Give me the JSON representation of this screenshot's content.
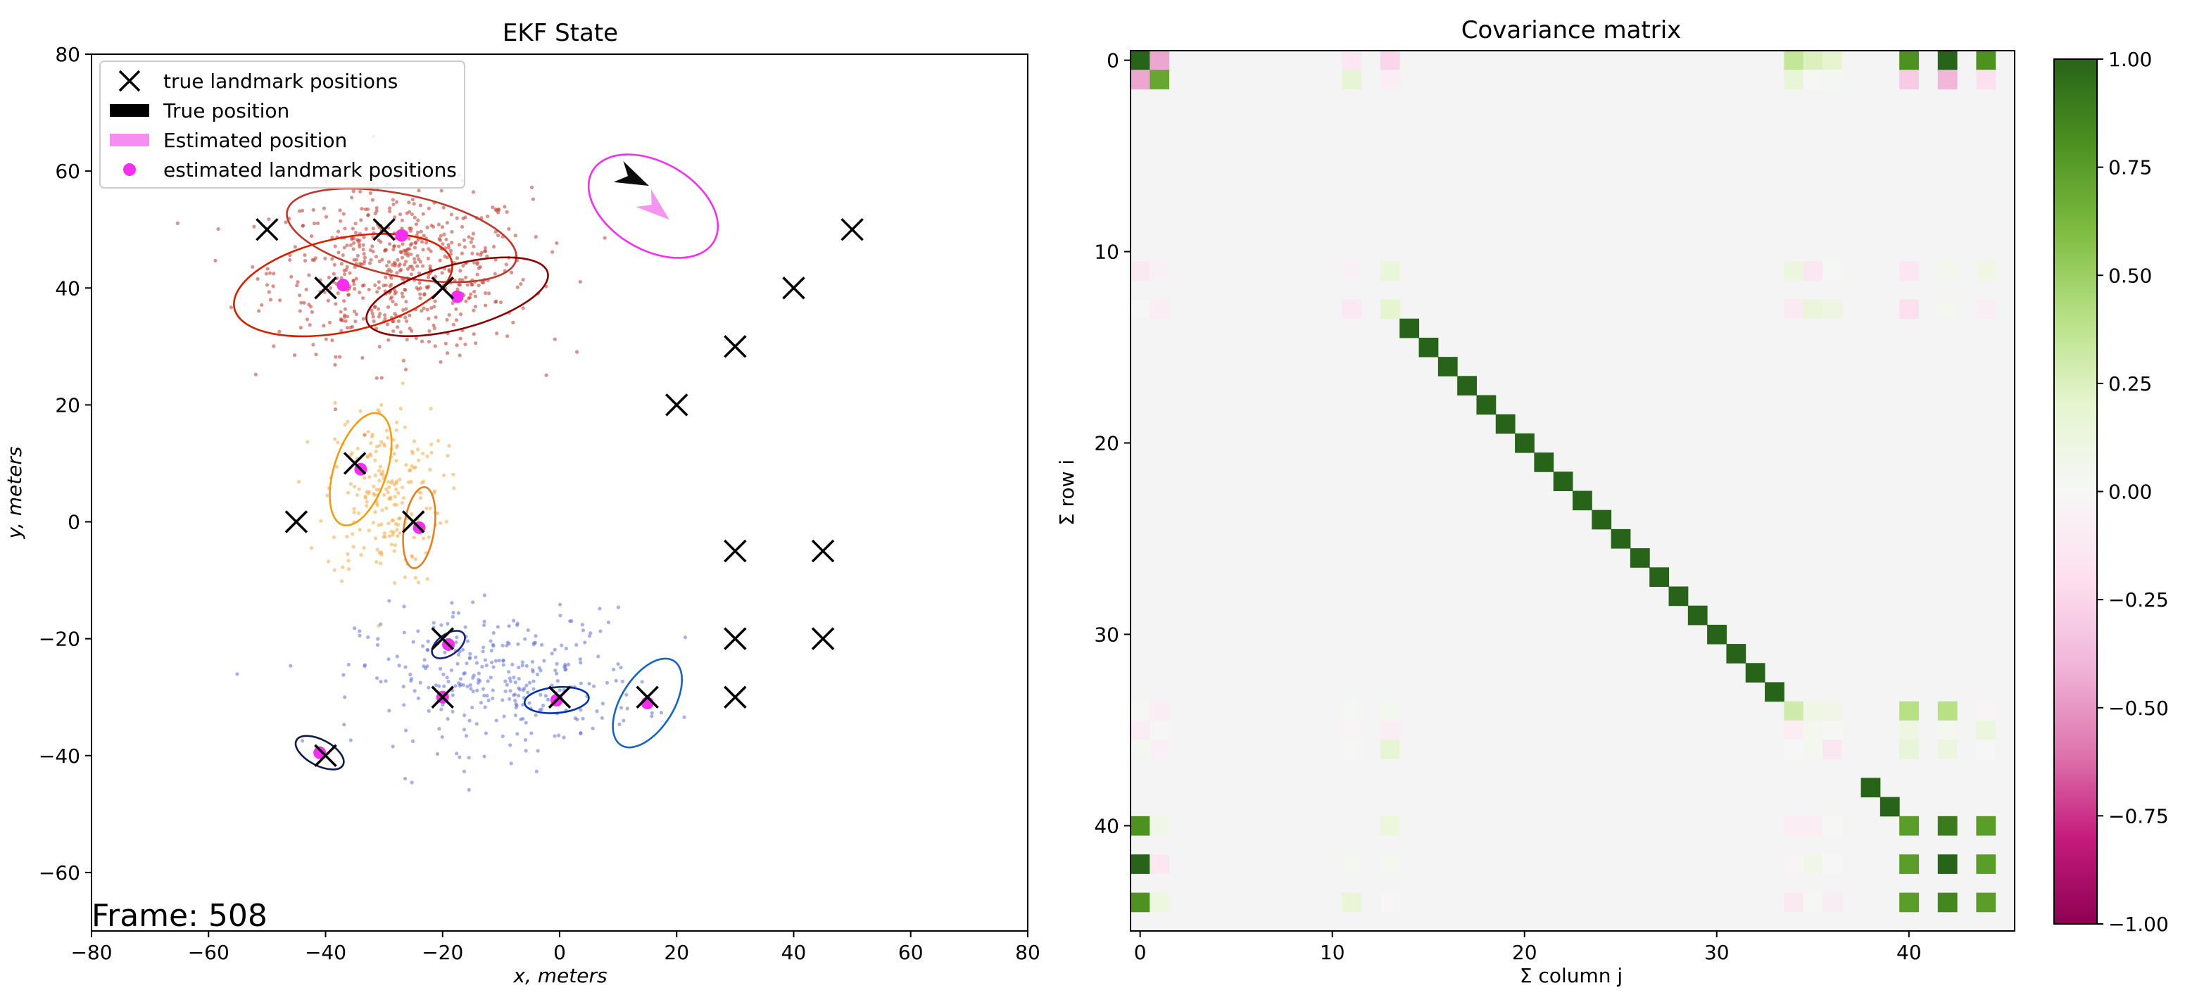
{
  "chart_data": [
    {
      "type": "scatter",
      "title": "EKF State",
      "xlabel": "x, meters",
      "ylabel": "y, meters",
      "xlim": [
        -80,
        80
      ],
      "ylim": [
        -70,
        80
      ],
      "xticks": [
        -80,
        -60,
        -40,
        -20,
        0,
        20,
        40,
        60,
        80
      ],
      "yticks": [
        -60,
        -40,
        -20,
        0,
        20,
        40,
        60,
        80
      ],
      "xtick_labels": [
        "−80",
        "−60",
        "−40",
        "−20",
        "0",
        "20",
        "40",
        "60",
        "80"
      ],
      "ytick_labels": [
        "−60",
        "−40",
        "−20",
        "0",
        "20",
        "40",
        "60",
        "80"
      ],
      "grid": false,
      "legend_position": "top-left",
      "legend": [
        {
          "label": "true landmark positions",
          "marker": "x",
          "color": "#000000"
        },
        {
          "label": "True position",
          "marker": "arrow",
          "color": "#000000"
        },
        {
          "label": "Estimated position",
          "marker": "arrow",
          "color": "#f58ef0"
        },
        {
          "label": "estimated landmark positions",
          "marker": "circle",
          "color": "#f52ef0"
        }
      ],
      "annotation": "Frame: 508",
      "true_landmarks": [
        {
          "x": -50,
          "y": 50
        },
        {
          "x": -30,
          "y": 50
        },
        {
          "x": -40,
          "y": 40
        },
        {
          "x": -20,
          "y": 40
        },
        {
          "x": 50,
          "y": 50
        },
        {
          "x": 40,
          "y": 40
        },
        {
          "x": 30,
          "y": 30
        },
        {
          "x": 20,
          "y": 20
        },
        {
          "x": -35,
          "y": 10
        },
        {
          "x": -45,
          "y": 0
        },
        {
          "x": -25,
          "y": 0
        },
        {
          "x": 30,
          "y": -5
        },
        {
          "x": 45,
          "y": -5
        },
        {
          "x": 30,
          "y": -20
        },
        {
          "x": 45,
          "y": -20
        },
        {
          "x": -20,
          "y": -20
        },
        {
          "x": -20,
          "y": -30
        },
        {
          "x": 0,
          "y": -30
        },
        {
          "x": 15,
          "y": -30
        },
        {
          "x": 30,
          "y": -30
        },
        {
          "x": -40,
          "y": -40
        }
      ],
      "estimated_landmarks": [
        {
          "x": -27,
          "y": 49
        },
        {
          "x": -37,
          "y": 40.5
        },
        {
          "x": -17.5,
          "y": 38.5
        },
        {
          "x": -34,
          "y": 9
        },
        {
          "x": -24,
          "y": -1
        },
        {
          "x": -19,
          "y": -21
        },
        {
          "x": -20,
          "y": -30
        },
        {
          "x": -0.5,
          "y": -30.5
        },
        {
          "x": 15,
          "y": -31
        },
        {
          "x": -41,
          "y": -39.5
        }
      ],
      "covariance_ellipses": [
        {
          "cx": -27,
          "cy": 49,
          "rx": 20,
          "ry": 7,
          "angle_deg": -12,
          "color": "#c0392b"
        },
        {
          "cx": -37,
          "cy": 40.5,
          "rx": 19,
          "ry": 8,
          "angle_deg": 12,
          "color": "#d62000"
        },
        {
          "cx": -17.5,
          "cy": 38.5,
          "rx": 16,
          "ry": 5.5,
          "angle_deg": 15,
          "color": "#8b0000"
        },
        {
          "cx": -34,
          "cy": 9,
          "rx": 10,
          "ry": 4.5,
          "angle_deg": 72,
          "color": "#f39c12"
        },
        {
          "cx": -24,
          "cy": -1,
          "rx": 7,
          "ry": 2.6,
          "angle_deg": 82,
          "color": "#e67e22"
        },
        {
          "cx": -19,
          "cy": -21,
          "rx": 3.2,
          "ry": 1.8,
          "angle_deg": 35,
          "color": "#1a237e"
        },
        {
          "cx": -0.5,
          "cy": -30.5,
          "rx": 5.5,
          "ry": 2.2,
          "angle_deg": 5,
          "color": "#0033aa"
        },
        {
          "cx": 15,
          "cy": -31,
          "rx": 8.5,
          "ry": 4.5,
          "angle_deg": 58,
          "color": "#1565c0"
        },
        {
          "cx": -41,
          "cy": -39.5,
          "rx": 4.5,
          "ry": 2.2,
          "angle_deg": -28,
          "color": "#0d1b4c"
        },
        {
          "cx": 16,
          "cy": 54,
          "rx": 12,
          "ry": 7.5,
          "angle_deg": -30,
          "color": "#f52ef0"
        }
      ],
      "true_pose": {
        "x": 12,
        "y": 59,
        "heading_deg": -25
      },
      "estimated_pose": {
        "x": 16,
        "y": 54,
        "heading_deg": -40
      },
      "particle_clouds": [
        {
          "cx": -27,
          "cy": 43,
          "sx": 11,
          "sy": 7,
          "n": 600,
          "color": "#c0392b"
        },
        {
          "cx": -30,
          "cy": 5,
          "sx": 5,
          "sy": 8,
          "n": 220,
          "color": "#f5a742"
        },
        {
          "cx": -10,
          "cy": -27,
          "sx": 12,
          "sy": 6,
          "n": 320,
          "color": "#5f6fd6"
        }
      ]
    },
    {
      "type": "heatmap",
      "title": "Covariance matrix",
      "xlabel": "Σ column j",
      "ylabel": "Σ row i",
      "size": 46,
      "xticks": [
        0,
        10,
        20,
        30,
        40
      ],
      "yticks": [
        0,
        10,
        20,
        30,
        40
      ],
      "colormap": "PiYG",
      "colorbar": {
        "min": -1,
        "max": 1,
        "ticks": [
          -1,
          -0.75,
          -0.5,
          -0.25,
          0,
          0.25,
          0.5,
          0.75,
          1
        ],
        "tick_labels": [
          "−1.00",
          "−0.75",
          "−0.50",
          "−0.25",
          "0.00",
          "0.25",
          "0.50",
          "0.75",
          "1.00"
        ]
      },
      "diagonal_identity": {
        "from": 14,
        "to": 33,
        "value": 1.0
      },
      "diagonal_extra": [
        {
          "i": 38,
          "value": 1.0
        },
        {
          "i": 39,
          "value": 1.0
        }
      ],
      "correlated_indices": [
        0,
        1,
        11,
        13,
        34,
        35,
        36,
        40,
        42,
        44
      ],
      "cells": [
        {
          "i": 0,
          "j": 0,
          "v": 1.0
        },
        {
          "i": 0,
          "j": 1,
          "v": -0.45
        },
        {
          "i": 1,
          "j": 0,
          "v": -0.45
        },
        {
          "i": 1,
          "j": 1,
          "v": 0.7
        },
        {
          "i": 0,
          "j": 34,
          "v": 0.35
        },
        {
          "i": 0,
          "j": 35,
          "v": 0.25
        },
        {
          "i": 0,
          "j": 36,
          "v": 0.2
        },
        {
          "i": 0,
          "j": 40,
          "v": 0.8
        },
        {
          "i": 0,
          "j": 42,
          "v": 1.0
        },
        {
          "i": 0,
          "j": 44,
          "v": 0.8
        },
        {
          "i": 0,
          "j": 11,
          "v": -0.15
        },
        {
          "i": 0,
          "j": 13,
          "v": -0.25
        },
        {
          "i": 1,
          "j": 40,
          "v": -0.3
        },
        {
          "i": 1,
          "j": 42,
          "v": -0.4
        },
        {
          "i": 1,
          "j": 44,
          "v": -0.2
        },
        {
          "i": 11,
          "j": 40,
          "v": -0.15
        },
        {
          "i": 13,
          "j": 40,
          "v": -0.2
        },
        {
          "i": 13,
          "j": 13,
          "v": 0.2
        },
        {
          "i": 40,
          "j": 0,
          "v": 0.8
        },
        {
          "i": 42,
          "j": 0,
          "v": 1.0
        },
        {
          "i": 44,
          "j": 0,
          "v": 0.8
        },
        {
          "i": 40,
          "j": 40,
          "v": 0.75
        },
        {
          "i": 40,
          "j": 42,
          "v": 0.9
        },
        {
          "i": 40,
          "j": 44,
          "v": 0.75
        },
        {
          "i": 42,
          "j": 40,
          "v": 0.75
        },
        {
          "i": 42,
          "j": 42,
          "v": 1.0
        },
        {
          "i": 42,
          "j": 44,
          "v": 0.75
        },
        {
          "i": 44,
          "j": 40,
          "v": 0.75
        },
        {
          "i": 44,
          "j": 42,
          "v": 0.85
        },
        {
          "i": 44,
          "j": 44,
          "v": 0.75
        },
        {
          "i": 34,
          "j": 34,
          "v": 0.3
        },
        {
          "i": 34,
          "j": 40,
          "v": 0.4
        },
        {
          "i": 34,
          "j": 42,
          "v": 0.4
        }
      ]
    }
  ]
}
